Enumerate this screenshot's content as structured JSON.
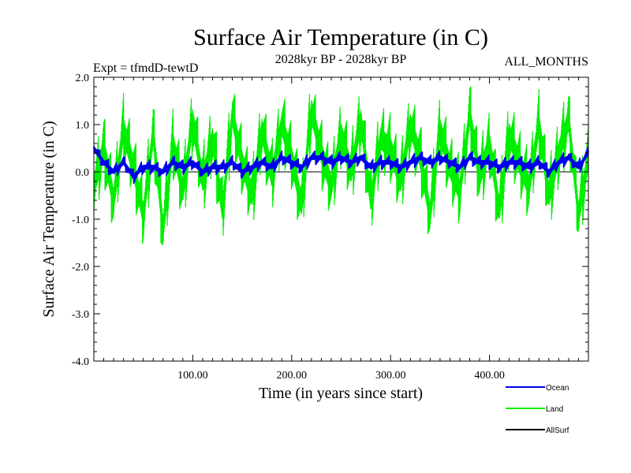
{
  "chart_data": {
    "type": "line",
    "title": "Surface Air Temperature (in C)",
    "subtitle": "2028kyr BP - 2028kyr BP",
    "experiment": "Expt = tfmdD-tewtD",
    "months": "ALL_MONTHS",
    "xlabel": "Time (in years since start)",
    "ylabel": "Surface Air Temperature (in C)",
    "xlim": [
      0,
      500
    ],
    "ylim": [
      -4.0,
      2.0
    ],
    "x_ticks": [
      100,
      200,
      300,
      400
    ],
    "x_tick_labels": [
      "100.00",
      "200.00",
      "300.00",
      "400.00"
    ],
    "y_ticks": [
      -4,
      -3,
      -2,
      -1,
      0,
      1,
      2
    ],
    "y_tick_labels": [
      "-4.0",
      "-3.0",
      "-2.0",
      "-1.0",
      "0.0",
      "1.0",
      "2.0"
    ],
    "zero_line": true,
    "series": [
      {
        "name": "Land",
        "color": "#00ee00",
        "x_step": 10,
        "values": [
          -0.3,
          0.5,
          -0.6,
          0.9,
          0.1,
          -0.9,
          0.8,
          -1.2,
          0.6,
          -0.4,
          1.1,
          -0.2,
          0.7,
          -0.8,
          1.2,
          0.2,
          -0.5,
          0.9,
          -0.1,
          1.0,
          0.3,
          -0.7,
          1.3,
          0.4,
          -0.3,
          0.8,
          0.0,
          1.1,
          -0.6,
          0.7,
          0.5,
          -0.2,
          1.0,
          0.3,
          -0.9,
          0.9,
          0.1,
          -0.4,
          1.2,
          -0.1,
          0.6,
          -0.8,
          0.8,
          0.2,
          -0.3,
          1.0,
          -0.5,
          0.4,
          1.1,
          -0.9,
          0.3
        ]
      },
      {
        "name": "Ocean",
        "color": "#0000ee",
        "x_step": 10,
        "values": [
          0.5,
          0.2,
          0.0,
          0.2,
          -0.1,
          0.1,
          0.1,
          0.0,
          0.2,
          0.1,
          0.2,
          0.0,
          0.1,
          0.1,
          0.2,
          0.0,
          0.1,
          0.2,
          0.1,
          0.3,
          0.2,
          0.1,
          0.3,
          0.3,
          0.2,
          0.3,
          0.2,
          0.3,
          0.1,
          0.2,
          0.2,
          0.1,
          0.2,
          0.3,
          0.2,
          0.3,
          0.2,
          0.1,
          0.3,
          0.2,
          0.2,
          0.1,
          0.2,
          0.2,
          0.1,
          0.2,
          0.0,
          0.2,
          0.3,
          0.1,
          0.4
        ]
      },
      {
        "name": "AllSurf",
        "color": "#000000",
        "x_step": 10,
        "values": []
      }
    ],
    "legend": [
      "Ocean",
      "Land",
      "AllSurf"
    ]
  }
}
